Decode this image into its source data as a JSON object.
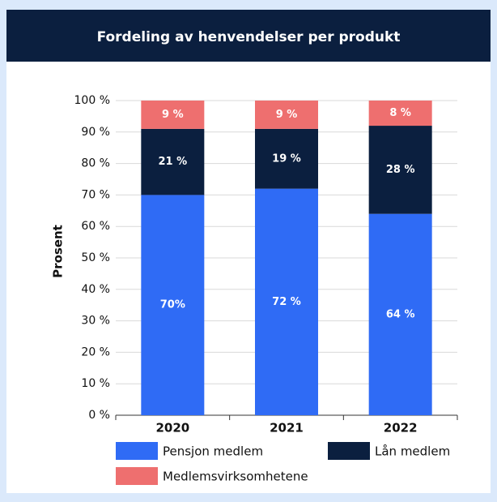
{
  "chart_data": {
    "type": "stacked_bar",
    "title": "Fordeling av henvendelser per produkt",
    "y_label": "Prosent",
    "categories": [
      "2020",
      "2021",
      "2022"
    ],
    "series": [
      {
        "name": "Pensjon medlem",
        "color": "#2f6bf5",
        "values": [
          70,
          72,
          64
        ],
        "value_labels": [
          "70%",
          "72 %",
          "64 %"
        ]
      },
      {
        "name": "Lån medlem",
        "color": "#0b1f3f",
        "values": [
          21,
          19,
          28
        ],
        "value_labels": [
          "21 %",
          "19 %",
          "28 %"
        ]
      },
      {
        "name": "Medlemsvirksomhetene",
        "color": "#ee6f6f",
        "values": [
          9,
          9,
          8
        ],
        "value_labels": [
          "9 %",
          "9 %",
          "8 %"
        ]
      }
    ],
    "ylim": [
      0,
      100
    ],
    "yticks": [
      {
        "value": 0,
        "label": "0 %"
      },
      {
        "value": 10,
        "label": "10 %"
      },
      {
        "value": 20,
        "label": "20 %"
      },
      {
        "value": 30,
        "label": "30 %"
      },
      {
        "value": 40,
        "label": "40 %"
      },
      {
        "value": 50,
        "label": "50 %"
      },
      {
        "value": 60,
        "label": "60 %"
      },
      {
        "value": 70,
        "label": "70 %"
      },
      {
        "value": 80,
        "label": "80 %"
      },
      {
        "value": 90,
        "label": "90 %"
      },
      {
        "value": 100,
        "label": "100 %"
      }
    ],
    "grid": true
  }
}
